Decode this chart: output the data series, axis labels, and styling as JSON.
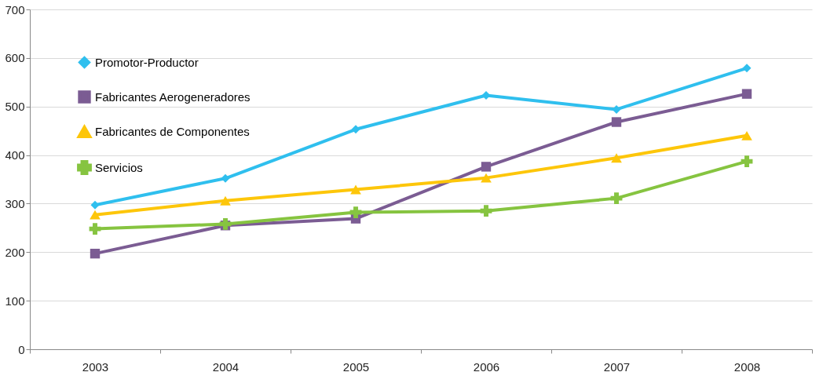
{
  "chart_data": {
    "type": "line",
    "categories": [
      "2003",
      "2004",
      "2005",
      "2006",
      "2007",
      "2008"
    ],
    "series": [
      {
        "name": "Promotor-Productor",
        "color": "#2fbfee",
        "marker": "diamond",
        "values": [
          297,
          352,
          453,
          523,
          494,
          579
        ]
      },
      {
        "name": "Fabricantes Aerogeneradores",
        "color": "#7b5c93",
        "marker": "square",
        "values": [
          197,
          255,
          269,
          376,
          468,
          526
        ]
      },
      {
        "name": "Fabricantes de Componentes",
        "color": "#fdc60a",
        "marker": "triangle",
        "values": [
          277,
          306,
          329,
          353,
          394,
          440
        ]
      },
      {
        "name": "Servicios",
        "color": "#86c440",
        "marker": "cross",
        "values": [
          248,
          258,
          282,
          285,
          311,
          387
        ]
      }
    ],
    "ylim": [
      0,
      700
    ],
    "yticks": [
      0,
      100,
      200,
      300,
      400,
      500,
      600,
      700
    ],
    "grid": "y",
    "legend": "top left",
    "line_style": "solid"
  }
}
